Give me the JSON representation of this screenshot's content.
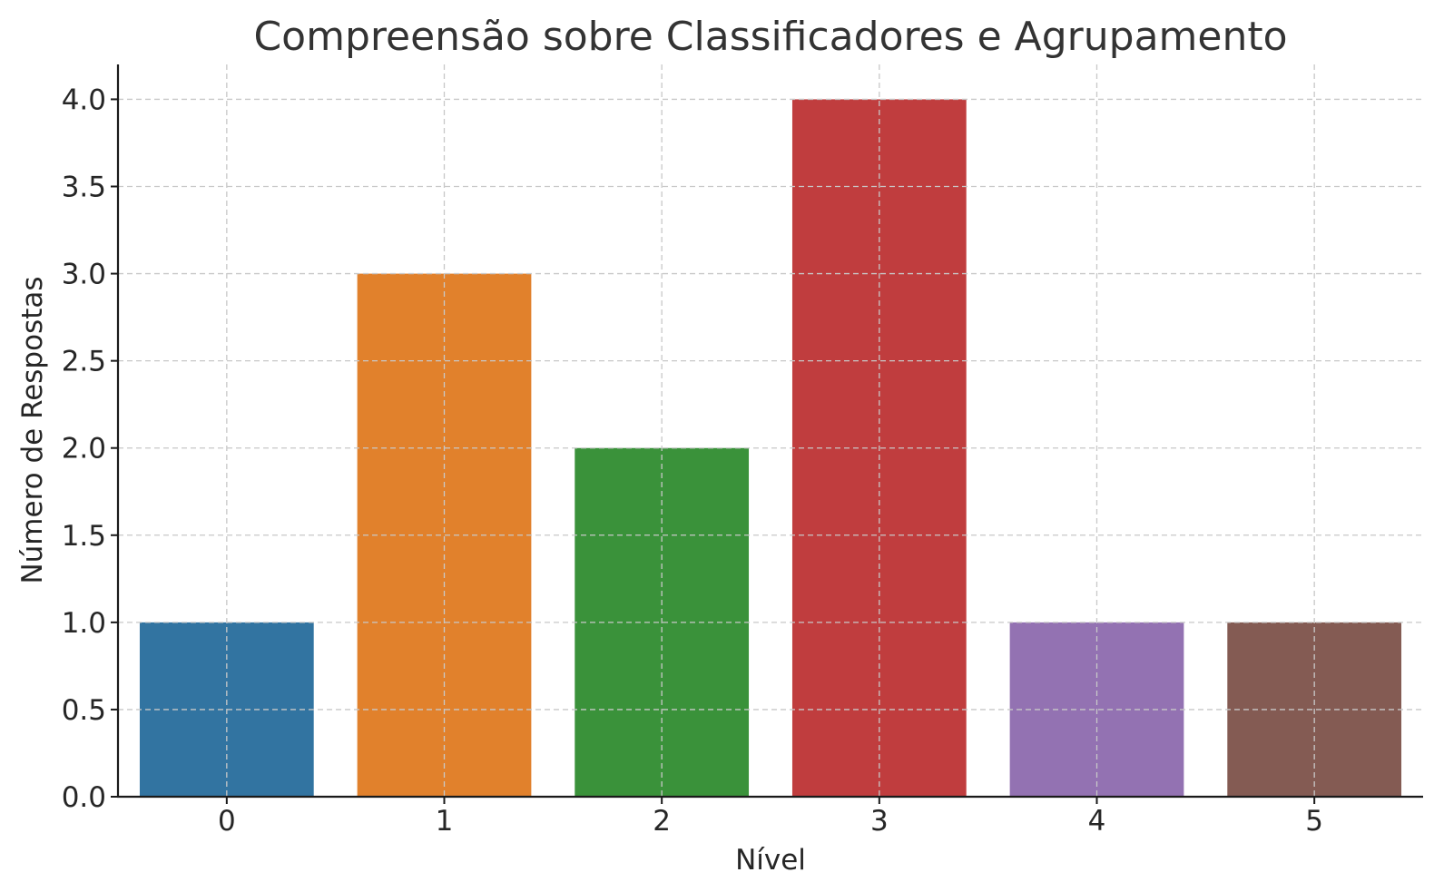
{
  "chart_data": {
    "type": "bar",
    "title": "Compreensão sobre Classificadores e Agrupamento",
    "xlabel": "Nível",
    "ylabel": "Número de Respostas",
    "categories": [
      "0",
      "1",
      "2",
      "3",
      "4",
      "5"
    ],
    "values": [
      1,
      3,
      2,
      4,
      1,
      1
    ],
    "colors": [
      "#3274a1",
      "#e1812c",
      "#3a923a",
      "#c03d3e",
      "#9372b2",
      "#845b53"
    ],
    "ylim": [
      0,
      4.2
    ],
    "yticks": [
      "0.0",
      "0.5",
      "1.0",
      "1.5",
      "2.0",
      "2.5",
      "3.0",
      "3.5",
      "4.0"
    ],
    "grid": true,
    "legend": "none"
  }
}
